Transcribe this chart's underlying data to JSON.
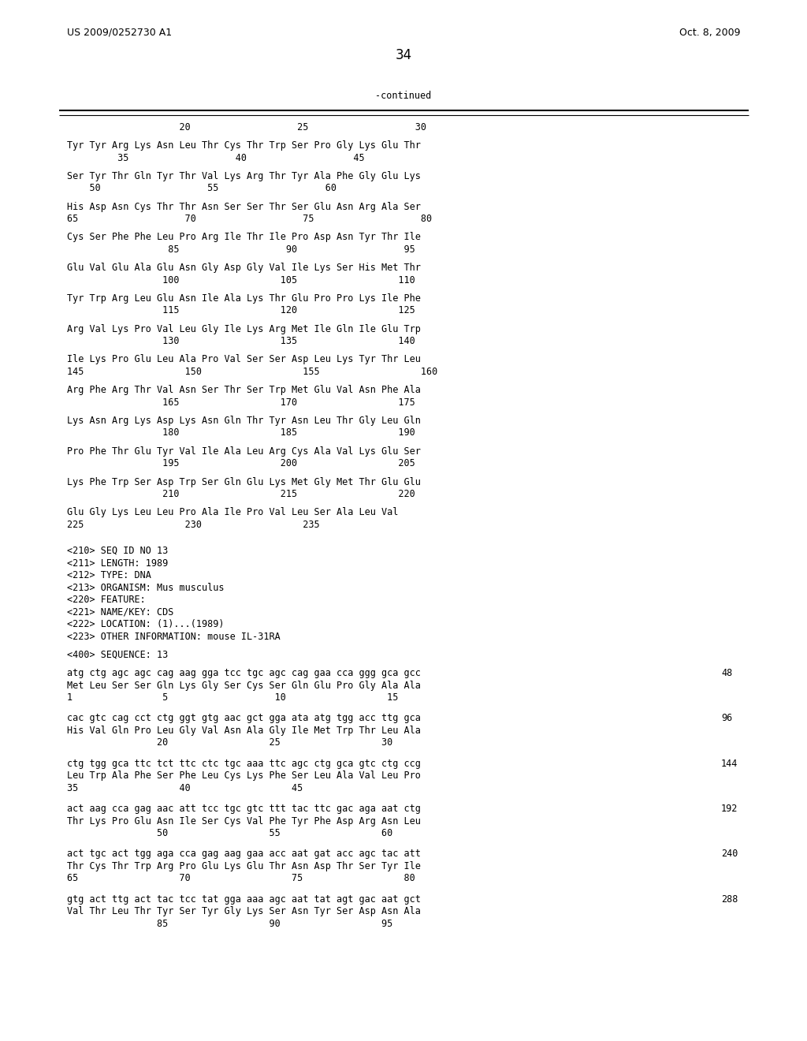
{
  "header_left": "US 2009/0252730 A1",
  "header_right": "Oct. 8, 2009",
  "page_number": "34",
  "continued_label": "-continued",
  "bg_color": "#ffffff",
  "text_color": "#000000",
  "aa_sequence_groups": [
    {
      "aa_line": "Tyr Tyr Arg Lys Asn Leu Thr Cys Thr Trp Ser Pro Gly Lys Glu Thr",
      "num_line": "         35                   40                   45"
    },
    {
      "aa_line": "Ser Tyr Thr Gln Tyr Thr Val Lys Arg Thr Tyr Ala Phe Gly Glu Lys",
      "num_line": "    50                   55                   60"
    },
    {
      "aa_line": "His Asp Asn Cys Thr Thr Asn Ser Ser Thr Ser Glu Asn Arg Ala Ser",
      "num_line": "65                   70                   75                   80"
    },
    {
      "aa_line": "Cys Ser Phe Phe Leu Pro Arg Ile Thr Ile Pro Asp Asn Tyr Thr Ile",
      "num_line": "                  85                   90                   95"
    },
    {
      "aa_line": "Glu Val Glu Ala Glu Asn Gly Asp Gly Val Ile Lys Ser His Met Thr",
      "num_line": "                 100                  105                  110"
    },
    {
      "aa_line": "Tyr Trp Arg Leu Glu Asn Ile Ala Lys Thr Glu Pro Pro Lys Ile Phe",
      "num_line": "                 115                  120                  125"
    },
    {
      "aa_line": "Arg Val Lys Pro Val Leu Gly Ile Lys Arg Met Ile Gln Ile Glu Trp",
      "num_line": "                 130                  135                  140"
    },
    {
      "aa_line": "Ile Lys Pro Glu Leu Ala Pro Val Ser Ser Asp Leu Lys Tyr Thr Leu",
      "num_line": "145                  150                  155                  160"
    },
    {
      "aa_line": "Arg Phe Arg Thr Val Asn Ser Thr Ser Trp Met Glu Val Asn Phe Ala",
      "num_line": "                 165                  170                  175"
    },
    {
      "aa_line": "Lys Asn Arg Lys Asp Lys Asn Gln Thr Tyr Asn Leu Thr Gly Leu Gln",
      "num_line": "                 180                  185                  190"
    },
    {
      "aa_line": "Pro Phe Thr Glu Tyr Val Ile Ala Leu Arg Cys Ala Val Lys Glu Ser",
      "num_line": "                 195                  200                  205"
    },
    {
      "aa_line": "Lys Phe Trp Ser Asp Trp Ser Gln Glu Lys Met Gly Met Thr Glu Glu",
      "num_line": "                 210                  215                  220"
    },
    {
      "aa_line": "Glu Gly Lys Leu Leu Pro Ala Ile Pro Val Leu Ser Ala Leu Val",
      "num_line": "225                  230                  235"
    }
  ],
  "top_num_line": "                    20                   25                   30",
  "metadata_lines": [
    "<210> SEQ ID NO 13",
    "<211> LENGTH: 1989",
    "<212> TYPE: DNA",
    "<213> ORGANISM: Mus musculus",
    "<220> FEATURE:",
    "<221> NAME/KEY: CDS",
    "<222> LOCATION: (1)...(1989)",
    "<223> OTHER INFORMATION: mouse IL-31RA"
  ],
  "seq400_label": "<400> SEQUENCE: 13",
  "sequence_blocks": [
    {
      "dna": "atg ctg agc agc cag aag gga tcc tgc agc cag gaa cca ggg gca gcc",
      "num_right": "48",
      "aa": "Met Leu Ser Ser Gln Lys Gly Ser Cys Ser Gln Glu Pro Gly Ala Ala",
      "aa_nums": "1                5                   10                  15"
    },
    {
      "dna": "cac gtc cag cct ctg ggt gtg aac gct gga ata atg tgg acc ttg gca",
      "num_right": "96",
      "aa": "His Val Gln Pro Leu Gly Val Asn Ala Gly Ile Met Trp Thr Leu Ala",
      "aa_nums": "                20                  25                  30"
    },
    {
      "dna": "ctg tgg gca ttc tct ttc ctc tgc aaa ttc agc ctg gca gtc ctg ccg",
      "num_right": "144",
      "aa": "Leu Trp Ala Phe Ser Phe Leu Cys Lys Phe Ser Leu Ala Val Leu Pro",
      "aa_nums": "35                  40                  45"
    },
    {
      "dna": "act aag cca gag aac att tcc tgc gtc ttt tac ttc gac aga aat ctg",
      "num_right": "192",
      "aa": "Thr Lys Pro Glu Asn Ile Ser Cys Val Phe Tyr Phe Asp Arg Asn Leu",
      "aa_nums": "                50                  55                  60"
    },
    {
      "dna": "act tgc act tgg aga cca gag aag gaa acc aat gat acc agc tac att",
      "num_right": "240",
      "aa": "Thr Cys Thr Trp Arg Pro Glu Lys Glu Thr Asn Asp Thr Ser Tyr Ile",
      "aa_nums": "65                  70                  75                  80"
    },
    {
      "dna": "gtg act ttg act tac tcc tat gga aaa agc aat tat agt gac aat gct",
      "num_right": "288",
      "aa": "Val Thr Leu Thr Tyr Ser Tyr Gly Lys Ser Asn Tyr Ser Asp Asn Ala",
      "aa_nums": "                85                  90                  95"
    }
  ]
}
